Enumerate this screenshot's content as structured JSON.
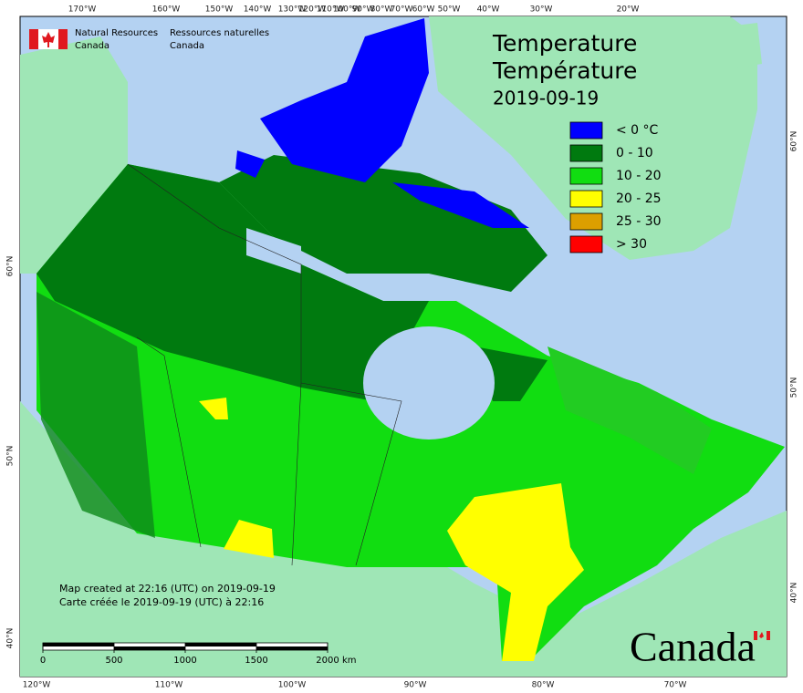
{
  "header": {
    "en": [
      "Natural Resources",
      "Canada"
    ],
    "fr": [
      "Ressources naturelles",
      "Canada"
    ]
  },
  "title": [
    "Temperature",
    "Température"
  ],
  "date": "2019-09-19",
  "legend": [
    {
      "label": "< 0 °C",
      "color": "#0000ff"
    },
    {
      "label": "0 - 10",
      "color": "#007a0f"
    },
    {
      "label": "10 - 20",
      "color": "#11dd11"
    },
    {
      "label": "20 - 25",
      "color": "#ffff00"
    },
    {
      "label": "25 - 30",
      "color": "#dc9f00"
    },
    {
      "label": "> 30",
      "color": "#ff0000"
    }
  ],
  "graticule": {
    "top": [
      "170°W",
      "160°W",
      "150°W",
      "140°W",
      "130°W",
      "120°W",
      "110°W",
      "100°W",
      "90°W",
      "80°W",
      "70°W",
      "60°W",
      "50°W",
      "40°W",
      "30°W",
      "20°W"
    ],
    "bottom": [
      "120°W",
      "110°W",
      "100°W",
      "90°W",
      "80°W",
      "70°W"
    ],
    "left": [
      "60°N",
      "50°N",
      "40°N"
    ],
    "right": [
      "60°N",
      "50°N",
      "40°N"
    ]
  },
  "notes": [
    "Map created at 22:16 (UTC) on 2019-09-19",
    "Carte créée le 2019-09-19 (UTC) à 22:16"
  ],
  "scale": {
    "ticks": [
      0,
      500,
      1000,
      1500,
      2000
    ],
    "unit": "km"
  },
  "wordmark": "Canada"
}
